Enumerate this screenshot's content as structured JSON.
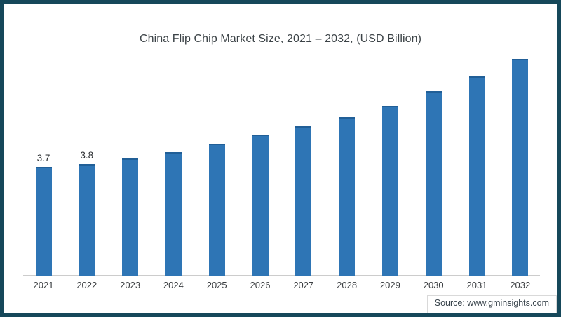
{
  "chart_data": {
    "type": "bar",
    "title": "China Flip Chip Market Size, 2021 – 2032, (USD Billion)",
    "categories": [
      "2021",
      "2022",
      "2023",
      "2024",
      "2025",
      "2026",
      "2027",
      "2028",
      "2029",
      "2030",
      "2031",
      "2032"
    ],
    "values": [
      3.7,
      3.8,
      4.0,
      4.2,
      4.5,
      4.8,
      5.1,
      5.4,
      5.8,
      6.3,
      6.8,
      7.4
    ],
    "data_labels": [
      "3.7",
      "3.8",
      "",
      "",
      "",
      "",
      "",
      "",
      "",
      "",
      "",
      ""
    ],
    "xlabel": "",
    "ylabel": "",
    "ylim": [
      0,
      8
    ],
    "grid": false,
    "legend": false,
    "bar_color": "#2e75b5",
    "bar_cap_color": "#215f97"
  },
  "footer": {
    "source": "Source: www.gminsights.com"
  },
  "colors": {
    "frame_border": "#16485a",
    "axis_line": "#cccccc",
    "title_text": "#3c4347",
    "tick_text": "#3d4043",
    "label_text": "#2a2d30",
    "background": "#ffffff"
  }
}
